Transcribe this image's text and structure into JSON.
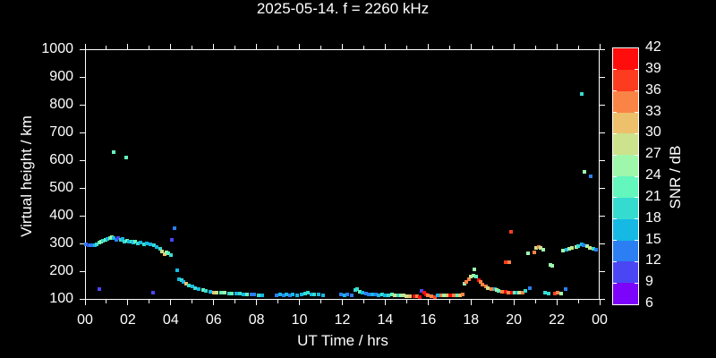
{
  "title": "2025-05-14. f = 2260 kHz",
  "colors": {
    "background": "#000000",
    "foreground": "#ffffff"
  },
  "chart_data": {
    "type": "scatter",
    "title": "2025-05-14. f = 2260 kHz",
    "xlabel": "UT Time / hrs",
    "ylabel": "Virtual height / km",
    "colorbar_label": "SNR / dB",
    "xlim": [
      0,
      24
    ],
    "ylim": [
      97,
      1000
    ],
    "grid": false,
    "x_tick_hours": [
      0,
      2,
      4,
      6,
      8,
      10,
      12,
      14,
      16,
      18,
      20,
      22,
      24
    ],
    "x_tick_labels": [
      "00",
      "02",
      "04",
      "06",
      "08",
      "10",
      "12",
      "14",
      "16",
      "18",
      "20",
      "22",
      "00"
    ],
    "x_minor_tick_hours": [
      1,
      3,
      5,
      7,
      9,
      11,
      13,
      15,
      17,
      19,
      21,
      23
    ],
    "y_tick_values": [
      100,
      200,
      300,
      400,
      500,
      600,
      700,
      800,
      900,
      1000
    ],
    "y_tick_labels": [
      "100",
      "200",
      "300",
      "400",
      "500",
      "600",
      "700",
      "800",
      "900",
      "1000"
    ],
    "colorbar_tick_labels": [
      "42",
      "39",
      "36",
      "33",
      "30",
      "27",
      "24",
      "21",
      "18",
      "15",
      "12",
      "9",
      "6"
    ],
    "colorbar_range": [
      6,
      42
    ],
    "palette_low_to_high": [
      "#7c04fa",
      "#4a46f4",
      "#2b7ff2",
      "#16b8e4",
      "#36dbd0",
      "#63f6bd",
      "#9ff7ac",
      "#cce28c",
      "#edc06c",
      "#fa8446",
      "#fd3c1f",
      "#ff0c0c"
    ],
    "points_format": [
      "ut_hours",
      "virtual_height_km",
      "snr_db"
    ],
    "points": [
      [
        0.05,
        297,
        13.5
      ],
      [
        0.15,
        295,
        10.5
      ],
      [
        0.25,
        294,
        13.5
      ],
      [
        0.35,
        292,
        13.5
      ],
      [
        0.45,
        295,
        16.5
      ],
      [
        0.55,
        298,
        19.5
      ],
      [
        0.65,
        302,
        22.5
      ],
      [
        0.75,
        306,
        25.5
      ],
      [
        0.85,
        310,
        19.5
      ],
      [
        0.95,
        314,
        22.5
      ],
      [
        1.05,
        317,
        16.5
      ],
      [
        1.15,
        320,
        22.5
      ],
      [
        1.25,
        322,
        25.5
      ],
      [
        1.35,
        318,
        16.5
      ],
      [
        1.45,
        314,
        13.5
      ],
      [
        1.55,
        319,
        10.5
      ],
      [
        1.65,
        312,
        19.5
      ],
      [
        1.75,
        316,
        16.5
      ],
      [
        1.85,
        308,
        19.5
      ],
      [
        1.95,
        310,
        22.5
      ],
      [
        2.05,
        305,
        16.5
      ],
      [
        2.15,
        307,
        19.5
      ],
      [
        2.25,
        303,
        16.5
      ],
      [
        2.35,
        305,
        22.5
      ],
      [
        2.45,
        300,
        19.5
      ],
      [
        2.6,
        302,
        16.5
      ],
      [
        2.75,
        298,
        19.5
      ],
      [
        2.9,
        300,
        16.5
      ],
      [
        3.05,
        296,
        16.5
      ],
      [
        3.2,
        293,
        19.5
      ],
      [
        3.35,
        288,
        16.5
      ],
      [
        3.5,
        282,
        19.5
      ],
      [
        3.6,
        272,
        28.5
      ],
      [
        3.7,
        262,
        31.5
      ],
      [
        3.8,
        268,
        25.5
      ],
      [
        3.9,
        263,
        22.5
      ],
      [
        4.0,
        258,
        19.5
      ],
      [
        0.67,
        134,
        10.5
      ],
      [
        1.35,
        628,
        22.5
      ],
      [
        1.92,
        609,
        22.5
      ],
      [
        3.17,
        123,
        10.5
      ],
      [
        4.05,
        312,
        10.5
      ],
      [
        4.17,
        356,
        13.5
      ],
      [
        4.28,
        202,
        16.5
      ],
      [
        4.4,
        172,
        16.5
      ],
      [
        4.5,
        167,
        19.5
      ],
      [
        4.6,
        160,
        16.5
      ],
      [
        4.7,
        156,
        31.5
      ],
      [
        4.85,
        149,
        19.5
      ],
      [
        5.0,
        145,
        16.5
      ],
      [
        5.15,
        140,
        19.5
      ],
      [
        5.3,
        136,
        16.5
      ],
      [
        5.5,
        132,
        22.5
      ],
      [
        5.65,
        129,
        19.5
      ],
      [
        5.85,
        126,
        16.5
      ],
      [
        6.0,
        124,
        31.5
      ],
      [
        6.15,
        124,
        28.5
      ],
      [
        6.35,
        122,
        22.5
      ],
      [
        6.5,
        121,
        25.5
      ],
      [
        6.7,
        119,
        19.5
      ],
      [
        6.85,
        119,
        22.5
      ],
      [
        7.05,
        118,
        16.5
      ],
      [
        7.2,
        118,
        19.5
      ],
      [
        7.4,
        117,
        16.5
      ],
      [
        7.55,
        117,
        22.5
      ],
      [
        7.75,
        116,
        13.5
      ],
      [
        7.9,
        115,
        13.5
      ],
      [
        8.1,
        114,
        19.5
      ],
      [
        8.25,
        114,
        16.5
      ],
      [
        8.95,
        114,
        13.5
      ],
      [
        9.1,
        115,
        16.5
      ],
      [
        9.25,
        114,
        13.5
      ],
      [
        9.4,
        115,
        16.5
      ],
      [
        9.55,
        114,
        13.5
      ],
      [
        9.7,
        115,
        16.5
      ],
      [
        9.9,
        114,
        16.5
      ],
      [
        10.1,
        115,
        16.5
      ],
      [
        10.25,
        118,
        19.5
      ],
      [
        10.4,
        122,
        19.5
      ],
      [
        10.55,
        117,
        16.5
      ],
      [
        10.7,
        115,
        19.5
      ],
      [
        10.9,
        115,
        16.5
      ],
      [
        11.1,
        114,
        16.5
      ],
      [
        11.95,
        115,
        13.5
      ],
      [
        12.1,
        114,
        16.5
      ],
      [
        12.25,
        115,
        13.5
      ],
      [
        12.45,
        114,
        13.5
      ],
      [
        12.6,
        132,
        19.5
      ],
      [
        12.7,
        135,
        19.5
      ],
      [
        12.8,
        126,
        22.5
      ],
      [
        12.95,
        124,
        16.5
      ],
      [
        13.1,
        118,
        13.5
      ],
      [
        13.25,
        116,
        13.5
      ],
      [
        13.4,
        115,
        16.5
      ],
      [
        13.55,
        115,
        13.5
      ],
      [
        13.7,
        114,
        16.5
      ],
      [
        13.85,
        115,
        19.5
      ],
      [
        14.0,
        114,
        16.5
      ],
      [
        14.15,
        114,
        19.5
      ],
      [
        14.3,
        115,
        22.5
      ],
      [
        14.45,
        114,
        28.5
      ],
      [
        14.6,
        113,
        19.5
      ],
      [
        14.75,
        113,
        25.5
      ],
      [
        14.85,
        112,
        28.5
      ],
      [
        15.0,
        111,
        28.5
      ],
      [
        15.15,
        110,
        31.5
      ],
      [
        15.35,
        109,
        40.5
      ],
      [
        15.5,
        110,
        34.5
      ],
      [
        15.6,
        108,
        40.5
      ],
      [
        15.7,
        128,
        10.5
      ],
      [
        15.8,
        121,
        40.5
      ],
      [
        15.9,
        117,
        40.5
      ],
      [
        16.0,
        114,
        34.5
      ],
      [
        16.15,
        111,
        34.5
      ],
      [
        16.3,
        108,
        37.5
      ],
      [
        16.45,
        112,
        16.5
      ],
      [
        16.6,
        112,
        34.5
      ],
      [
        16.75,
        113,
        25.5
      ],
      [
        16.9,
        112,
        31.5
      ],
      [
        17.05,
        113,
        40.5
      ],
      [
        17.2,
        112,
        34.5
      ],
      [
        17.35,
        113,
        22.5
      ],
      [
        17.5,
        114,
        31.5
      ],
      [
        17.6,
        116,
        34.5
      ],
      [
        17.7,
        154,
        25.5
      ],
      [
        17.8,
        162,
        34.5
      ],
      [
        17.9,
        170,
        34.5
      ],
      [
        18.0,
        180,
        28.5
      ],
      [
        18.1,
        184,
        25.5
      ],
      [
        18.15,
        207,
        25.5
      ],
      [
        18.25,
        180,
        22.5
      ],
      [
        18.35,
        169,
        40.5
      ],
      [
        18.45,
        160,
        34.5
      ],
      [
        18.55,
        152,
        34.5
      ],
      [
        18.7,
        145,
        34.5
      ],
      [
        18.8,
        140,
        28.5
      ],
      [
        18.95,
        136,
        34.5
      ],
      [
        19.1,
        134,
        16.5
      ],
      [
        19.2,
        131,
        28.5
      ],
      [
        19.3,
        129,
        22.5
      ],
      [
        19.45,
        127,
        34.5
      ],
      [
        19.6,
        125,
        40.5
      ],
      [
        19.75,
        124,
        34.5
      ],
      [
        19.9,
        123,
        40.5
      ],
      [
        20.05,
        122,
        22.5
      ],
      [
        20.15,
        122,
        16.5
      ],
      [
        20.25,
        122,
        28.5
      ],
      [
        20.4,
        121,
        34.5
      ],
      [
        19.6,
        233,
        37.5
      ],
      [
        19.8,
        231,
        34.5
      ],
      [
        19.85,
        341,
        37.5
      ],
      [
        20.55,
        129,
        19.5
      ],
      [
        20.75,
        138,
        13.5
      ],
      [
        20.65,
        265,
        25.5
      ],
      [
        20.95,
        269,
        34.5
      ],
      [
        21.05,
        283,
        28.5
      ],
      [
        21.15,
        287,
        34.5
      ],
      [
        21.25,
        283,
        28.5
      ],
      [
        21.35,
        278,
        25.5
      ],
      [
        21.45,
        122,
        19.5
      ],
      [
        21.6,
        120,
        19.5
      ],
      [
        21.9,
        119,
        37.5
      ],
      [
        22.05,
        121,
        34.5
      ],
      [
        22.2,
        120,
        25.5
      ],
      [
        22.4,
        134,
        13.5
      ],
      [
        21.7,
        223,
        25.5
      ],
      [
        21.8,
        219,
        25.5
      ],
      [
        22.3,
        274,
        25.5
      ],
      [
        22.45,
        277,
        16.5
      ],
      [
        22.6,
        281,
        25.5
      ],
      [
        22.7,
        283,
        28.5
      ],
      [
        22.9,
        287,
        25.5
      ],
      [
        23.0,
        291,
        19.5
      ],
      [
        23.15,
        296,
        16.5
      ],
      [
        23.25,
        294,
        13.5
      ],
      [
        23.4,
        290,
        25.5
      ],
      [
        23.55,
        285,
        28.5
      ],
      [
        23.7,
        281,
        19.5
      ],
      [
        23.85,
        278,
        13.5
      ],
      [
        23.15,
        839,
        19.5
      ],
      [
        23.3,
        557,
        25.5
      ],
      [
        23.6,
        541,
        13.5
      ]
    ]
  }
}
